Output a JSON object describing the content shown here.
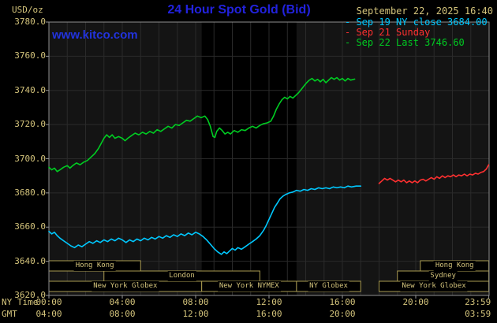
{
  "header": {
    "units": "USD/oz",
    "title": "24 Hour Spot Gold (Bid)",
    "datetime": "September 22, 2025 16:40",
    "website": "www.kitco.com"
  },
  "legend": {
    "entries": [
      {
        "label": "Sep 19 NY close 3684.00",
        "color": "#00c8ff"
      },
      {
        "label": "Sep 21 Sunday",
        "color": "#ff3030"
      },
      {
        "label": "Sep 22 Last 3746.60",
        "color": "#00cc22"
      }
    ]
  },
  "colors": {
    "background": "#000000",
    "plot_background": "#141414",
    "nymex_band": "#000000",
    "grid": "#2a2a2a",
    "border": "#909090",
    "tick": "#999999",
    "tan_text": "#d3c37b",
    "title_blue": "#2222dd",
    "session_border": "#a89a50"
  },
  "chart_data": {
    "type": "line",
    "title": "24 Hour Spot Gold (Bid)",
    "ylabel": "USD/oz",
    "xlabel": "NY Time",
    "ylim": [
      3620,
      3780
    ],
    "xlim_hours": [
      0,
      24
    ],
    "y_ticks": [
      3620,
      3640,
      3660,
      3680,
      3700,
      3720,
      3740,
      3760,
      3780
    ],
    "x_axis": {
      "ny_label": "NY Time",
      "gmt_label": "GMT",
      "ny_ticks": [
        {
          "hour": 0,
          "label": "00:00"
        },
        {
          "hour": 4,
          "label": "04:00"
        },
        {
          "hour": 8,
          "label": "08:00"
        },
        {
          "hour": 12,
          "label": "12:00"
        },
        {
          "hour": 16,
          "label": "16:00"
        },
        {
          "hour": 20,
          "label": "20:00"
        },
        {
          "hour": 23.983,
          "label": "23:59"
        }
      ],
      "gmt_ticks": [
        {
          "hour": 0,
          "label": "04:00"
        },
        {
          "hour": 4,
          "label": "08:00"
        },
        {
          "hour": 8,
          "label": "12:00"
        },
        {
          "hour": 12,
          "label": "16:00"
        },
        {
          "hour": 16,
          "label": "20:00"
        },
        {
          "hour": 23.983,
          "label": "03:59"
        }
      ]
    },
    "nymex_band_hours": [
      8.33,
      13.5
    ],
    "sessions": [
      {
        "row": 0,
        "label": "Hong Kong",
        "start": 0,
        "end": 5.0
      },
      {
        "row": 0,
        "label": "Hong Kong",
        "start": 20.25,
        "end": 23.983
      },
      {
        "row": 1,
        "label": "London",
        "start": 3.0,
        "end": 11.5
      },
      {
        "row": 1,
        "label": "Sydney",
        "start": 19.0,
        "end": 23.983
      },
      {
        "row": 2,
        "label": "New York Globex",
        "start": 0,
        "end": 8.33
      },
      {
        "row": 2,
        "label": "New York NYMEX",
        "start": 8.33,
        "end": 13.5
      },
      {
        "row": 2,
        "label": "NY Globex",
        "start": 13.5,
        "end": 17.0
      },
      {
        "row": 2,
        "label": "New York Globex",
        "start": 18.0,
        "end": 23.983
      }
    ],
    "series": [
      {
        "name": "Sep 19 NY close",
        "color": "#00c8ff",
        "close_value": 3684.0,
        "points": [
          [
            0,
            3657.5
          ],
          [
            0.15,
            3656
          ],
          [
            0.3,
            3657
          ],
          [
            0.45,
            3655
          ],
          [
            0.6,
            3653.5
          ],
          [
            0.8,
            3652
          ],
          [
            1.0,
            3650.5
          ],
          [
            1.2,
            3649
          ],
          [
            1.4,
            3648
          ],
          [
            1.6,
            3649.5
          ],
          [
            1.8,
            3648.5
          ],
          [
            2.0,
            3650
          ],
          [
            2.2,
            3651.5
          ],
          [
            2.4,
            3650.5
          ],
          [
            2.6,
            3652
          ],
          [
            2.8,
            3651
          ],
          [
            3.0,
            3652.5
          ],
          [
            3.2,
            3651.5
          ],
          [
            3.4,
            3653
          ],
          [
            3.6,
            3652
          ],
          [
            3.8,
            3653.5
          ],
          [
            4.0,
            3652.5
          ],
          [
            4.2,
            3651
          ],
          [
            4.4,
            3652.5
          ],
          [
            4.6,
            3651.5
          ],
          [
            4.8,
            3653
          ],
          [
            5.0,
            3652
          ],
          [
            5.2,
            3653.5
          ],
          [
            5.4,
            3652.5
          ],
          [
            5.6,
            3654
          ],
          [
            5.8,
            3653
          ],
          [
            6.0,
            3654.5
          ],
          [
            6.2,
            3653.5
          ],
          [
            6.4,
            3655
          ],
          [
            6.6,
            3654
          ],
          [
            6.8,
            3655.5
          ],
          [
            7.0,
            3654.5
          ],
          [
            7.2,
            3656
          ],
          [
            7.4,
            3655
          ],
          [
            7.6,
            3656.5
          ],
          [
            7.8,
            3655.5
          ],
          [
            8.0,
            3657
          ],
          [
            8.2,
            3656
          ],
          [
            8.4,
            3654.5
          ],
          [
            8.6,
            3652.5
          ],
          [
            8.8,
            3650
          ],
          [
            9.0,
            3647.5
          ],
          [
            9.2,
            3645.5
          ],
          [
            9.4,
            3644
          ],
          [
            9.55,
            3645.5
          ],
          [
            9.7,
            3644.5
          ],
          [
            9.85,
            3646
          ],
          [
            10.0,
            3647.5
          ],
          [
            10.15,
            3646.5
          ],
          [
            10.3,
            3648
          ],
          [
            10.5,
            3647
          ],
          [
            10.7,
            3648.5
          ],
          [
            10.9,
            3650
          ],
          [
            11.1,
            3651.5
          ],
          [
            11.3,
            3653
          ],
          [
            11.5,
            3655
          ],
          [
            11.7,
            3658
          ],
          [
            11.85,
            3661
          ],
          [
            12.0,
            3664.5
          ],
          [
            12.15,
            3668
          ],
          [
            12.3,
            3671.5
          ],
          [
            12.45,
            3674
          ],
          [
            12.6,
            3676.5
          ],
          [
            12.75,
            3678
          ],
          [
            12.9,
            3679
          ],
          [
            13.1,
            3680
          ],
          [
            13.3,
            3680.5
          ],
          [
            13.5,
            3681.5
          ],
          [
            13.7,
            3681
          ],
          [
            13.9,
            3682
          ],
          [
            14.1,
            3681.5
          ],
          [
            14.3,
            3682.5
          ],
          [
            14.5,
            3682
          ],
          [
            14.7,
            3683
          ],
          [
            14.9,
            3682.5
          ],
          [
            15.1,
            3683
          ],
          [
            15.3,
            3682.5
          ],
          [
            15.5,
            3683.5
          ],
          [
            15.7,
            3683
          ],
          [
            15.9,
            3683.5
          ],
          [
            16.1,
            3683
          ],
          [
            16.3,
            3684
          ],
          [
            16.5,
            3683.5
          ],
          [
            16.75,
            3684
          ],
          [
            17.0,
            3684
          ]
        ]
      },
      {
        "name": "Sep 21 Sunday",
        "color": "#ff3030",
        "points": [
          [
            18.0,
            3685.5
          ],
          [
            18.15,
            3687
          ],
          [
            18.3,
            3688.5
          ],
          [
            18.45,
            3687.5
          ],
          [
            18.6,
            3688.5
          ],
          [
            18.75,
            3687.5
          ],
          [
            18.9,
            3686.5
          ],
          [
            19.05,
            3687.5
          ],
          [
            19.2,
            3686.5
          ],
          [
            19.35,
            3687.5
          ],
          [
            19.5,
            3686
          ],
          [
            19.65,
            3687
          ],
          [
            19.8,
            3686
          ],
          [
            19.95,
            3687
          ],
          [
            20.1,
            3686
          ],
          [
            20.25,
            3687.5
          ],
          [
            20.4,
            3688
          ],
          [
            20.55,
            3687
          ],
          [
            20.7,
            3688
          ],
          [
            20.85,
            3689
          ],
          [
            21.0,
            3688
          ],
          [
            21.15,
            3689.5
          ],
          [
            21.3,
            3688.5
          ],
          [
            21.45,
            3690
          ],
          [
            21.6,
            3689
          ],
          [
            21.75,
            3690
          ],
          [
            21.9,
            3689.5
          ],
          [
            22.05,
            3690.5
          ],
          [
            22.2,
            3689.5
          ],
          [
            22.35,
            3690.5
          ],
          [
            22.5,
            3690
          ],
          [
            22.65,
            3691
          ],
          [
            22.8,
            3690
          ],
          [
            22.95,
            3691
          ],
          [
            23.1,
            3690.5
          ],
          [
            23.25,
            3691.5
          ],
          [
            23.4,
            3691
          ],
          [
            23.55,
            3692
          ],
          [
            23.7,
            3692.5
          ],
          [
            23.85,
            3694
          ],
          [
            23.98,
            3696.5
          ]
        ]
      },
      {
        "name": "Sep 22 Last",
        "color": "#00cc22",
        "last_value": 3746.6,
        "points": [
          [
            0,
            3695
          ],
          [
            0.15,
            3693.5
          ],
          [
            0.3,
            3694.5
          ],
          [
            0.45,
            3692.5
          ],
          [
            0.6,
            3693.5
          ],
          [
            0.8,
            3695
          ],
          [
            1.0,
            3696
          ],
          [
            1.15,
            3694.5
          ],
          [
            1.3,
            3696
          ],
          [
            1.5,
            3697.5
          ],
          [
            1.7,
            3696.5
          ],
          [
            1.9,
            3698
          ],
          [
            2.1,
            3699
          ],
          [
            2.3,
            3701
          ],
          [
            2.5,
            3703
          ],
          [
            2.7,
            3706
          ],
          [
            2.85,
            3709
          ],
          [
            3.0,
            3712
          ],
          [
            3.15,
            3714
          ],
          [
            3.3,
            3712.5
          ],
          [
            3.45,
            3714
          ],
          [
            3.6,
            3712
          ],
          [
            3.8,
            3713
          ],
          [
            4.0,
            3712
          ],
          [
            4.15,
            3710.5
          ],
          [
            4.3,
            3712
          ],
          [
            4.5,
            3713.5
          ],
          [
            4.7,
            3715
          ],
          [
            4.9,
            3714
          ],
          [
            5.1,
            3715.5
          ],
          [
            5.3,
            3714.5
          ],
          [
            5.5,
            3716
          ],
          [
            5.7,
            3715
          ],
          [
            5.9,
            3717
          ],
          [
            6.1,
            3716
          ],
          [
            6.3,
            3717.5
          ],
          [
            6.5,
            3719
          ],
          [
            6.7,
            3718
          ],
          [
            6.9,
            3720
          ],
          [
            7.1,
            3719.5
          ],
          [
            7.3,
            3721
          ],
          [
            7.5,
            3722.5
          ],
          [
            7.7,
            3722
          ],
          [
            7.9,
            3723.5
          ],
          [
            8.1,
            3725
          ],
          [
            8.3,
            3724
          ],
          [
            8.5,
            3725
          ],
          [
            8.65,
            3723
          ],
          [
            8.8,
            3719
          ],
          [
            8.95,
            3713
          ],
          [
            9.05,
            3712.5
          ],
          [
            9.15,
            3716
          ],
          [
            9.3,
            3718
          ],
          [
            9.45,
            3716.5
          ],
          [
            9.6,
            3714.5
          ],
          [
            9.75,
            3715.5
          ],
          [
            9.9,
            3714.5
          ],
          [
            10.1,
            3716.5
          ],
          [
            10.3,
            3715.5
          ],
          [
            10.5,
            3717
          ],
          [
            10.7,
            3716.5
          ],
          [
            10.9,
            3718
          ],
          [
            11.1,
            3719
          ],
          [
            11.3,
            3718
          ],
          [
            11.5,
            3719.5
          ],
          [
            11.7,
            3720.5
          ],
          [
            11.9,
            3721
          ],
          [
            12.1,
            3722
          ],
          [
            12.25,
            3725
          ],
          [
            12.4,
            3729
          ],
          [
            12.55,
            3732
          ],
          [
            12.7,
            3734.5
          ],
          [
            12.85,
            3736
          ],
          [
            13.0,
            3735
          ],
          [
            13.15,
            3736.5
          ],
          [
            13.3,
            3735.5
          ],
          [
            13.45,
            3737
          ],
          [
            13.6,
            3738.5
          ],
          [
            13.75,
            3740.5
          ],
          [
            13.9,
            3742.5
          ],
          [
            14.05,
            3744.5
          ],
          [
            14.2,
            3746
          ],
          [
            14.35,
            3747
          ],
          [
            14.5,
            3745.5
          ],
          [
            14.65,
            3746.5
          ],
          [
            14.8,
            3745
          ],
          [
            14.95,
            3746.5
          ],
          [
            15.1,
            3744.5
          ],
          [
            15.25,
            3746
          ],
          [
            15.4,
            3747.5
          ],
          [
            15.55,
            3746.5
          ],
          [
            15.7,
            3747.5
          ],
          [
            15.85,
            3746
          ],
          [
            16.0,
            3747
          ],
          [
            16.15,
            3745.5
          ],
          [
            16.3,
            3747
          ],
          [
            16.45,
            3746
          ],
          [
            16.67,
            3746.6
          ]
        ]
      }
    ]
  }
}
